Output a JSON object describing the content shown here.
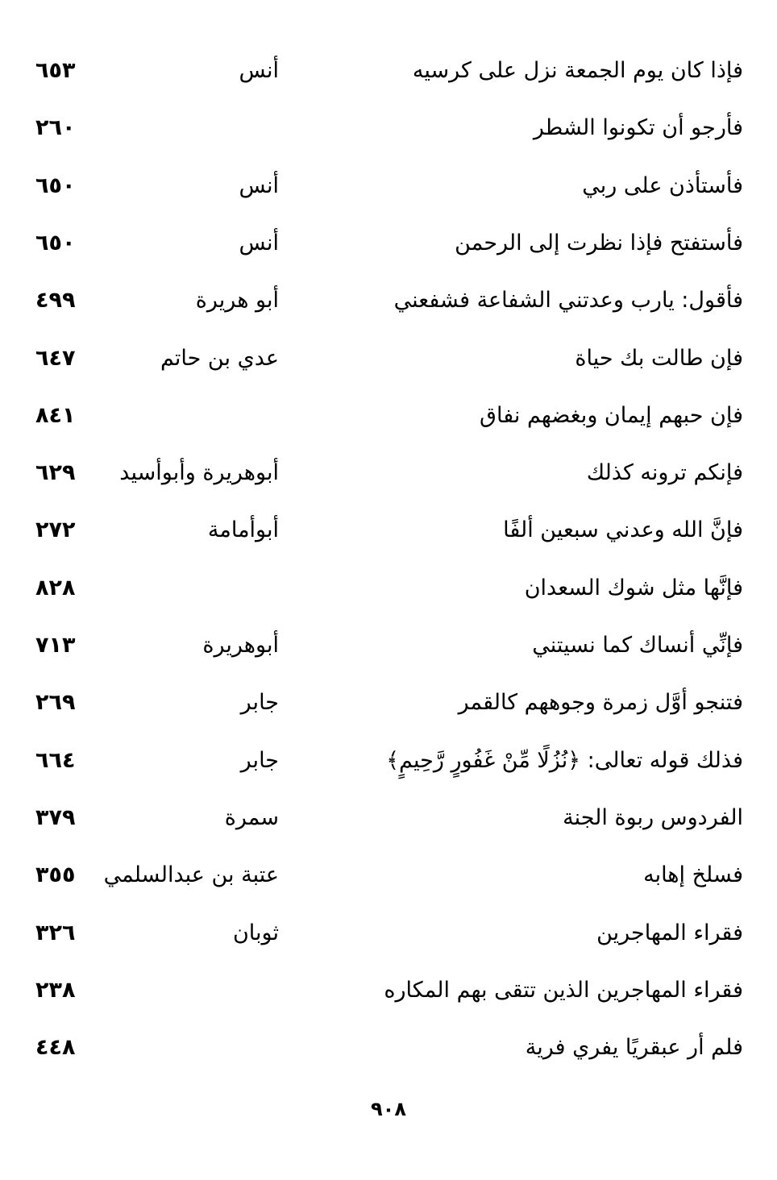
{
  "entries": [
    {
      "text": "فإذا كان يوم الجمعة نزل على كرسيه",
      "narrator": "أنس",
      "page": "٦٥٣"
    },
    {
      "text": "فأرجو أن تكونوا الشطر",
      "narrator": "",
      "page": "٢٦٠"
    },
    {
      "text": "فأستأذن على ربي",
      "narrator": "أنس",
      "page": "٦٥٠"
    },
    {
      "text": "فأستفتح فإذا نظرت إلى الرحمن",
      "narrator": "أنس",
      "page": "٦٥٠"
    },
    {
      "text": "فأقول: يارب وعدتني الشفاعة فشفعني",
      "narrator": "أبو هريرة",
      "page": "٤٩٩"
    },
    {
      "text": "فإن طالت بك حياة",
      "narrator": "عدي بن حاتم",
      "page": "٦٤٧"
    },
    {
      "text": "فإن حبهم إيمان وبغضهم نفاق",
      "narrator": "",
      "page": "٨٤١"
    },
    {
      "text": "فإنكم ترونه كذلك",
      "narrator": "أبوهريرة وأبوأسيد",
      "page": "٦٢٩"
    },
    {
      "text": "فإنَّ الله وعدني سبعين ألفًا",
      "narrator": "أبوأمامة",
      "page": "٢٧٢"
    },
    {
      "text": "فإنَّها مثل شوك السعدان",
      "narrator": "",
      "page": "٨٢٨"
    },
    {
      "text": "فإنِّي أنساك كما نسيتني",
      "narrator": "أبوهريرة",
      "page": "٧١٣"
    },
    {
      "text": "فتنجو أوَّل زمرة وجوههم كالقمر",
      "narrator": "جابر",
      "page": "٢٦٩"
    },
    {
      "text": "فذلك قوله تعالى: ﴿نُزُلًا مِّنْ غَفُورٍ رَّحِيمٍ﴾",
      "narrator": "جابر",
      "page": "٦٦٤"
    },
    {
      "text": "الفردوس ربوة الجنة",
      "narrator": "سمرة",
      "page": "٣٧٩"
    },
    {
      "text": "فسلخ إهابه",
      "narrator": "عتبة بن عبدالسلمي",
      "page": "٣٥٥"
    },
    {
      "text": "فقراء المهاجرين",
      "narrator": "ثوبان",
      "page": "٣٢٦"
    },
    {
      "text": "فقراء المهاجرين الذين تتقى بهم المكاره",
      "narrator": "",
      "page": "٢٣٨"
    },
    {
      "text": "فلم أر عبقريًا يفري فرية",
      "narrator": "",
      "page": "٤٤٨"
    }
  ],
  "footer": {
    "page_number": "٩٠٨"
  }
}
